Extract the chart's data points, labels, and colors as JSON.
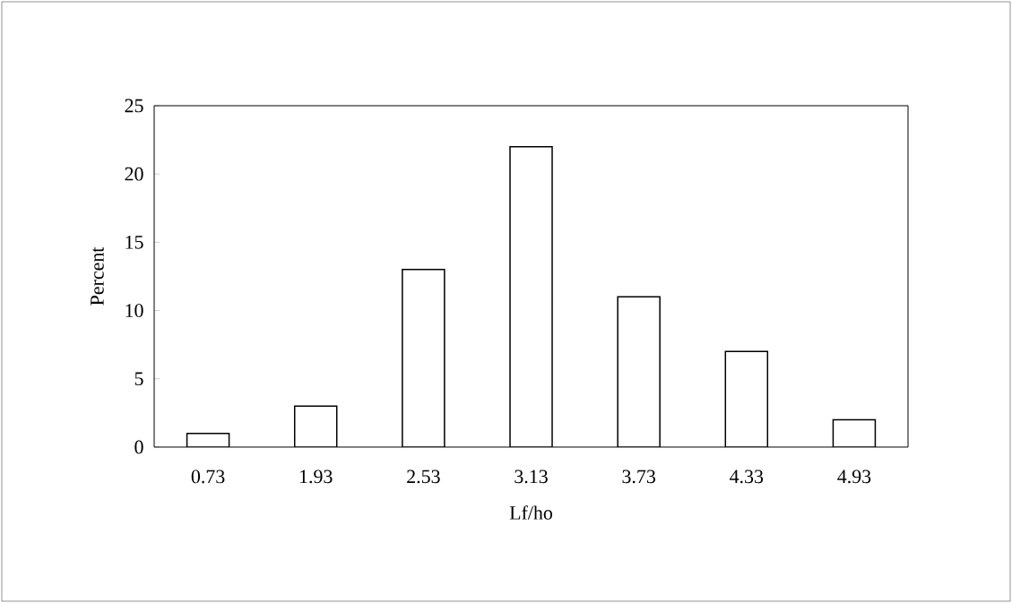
{
  "chart_data": {
    "type": "bar",
    "xlabel": "Lf/ho",
    "ylabel": "Percent",
    "categories": [
      "0.73",
      "1.93",
      "2.53",
      "3.13",
      "3.73",
      "4.33",
      "4.93"
    ],
    "values": [
      1,
      3,
      13,
      22,
      11,
      7,
      2
    ],
    "color": "#ffffff",
    "ylim": [
      0,
      25
    ],
    "yticks": [
      0,
      5,
      10,
      15,
      20,
      25
    ]
  }
}
